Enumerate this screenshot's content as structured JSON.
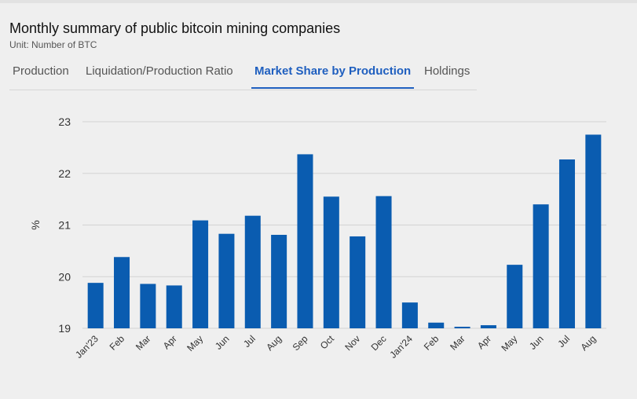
{
  "header": {
    "title": "Monthly summary of public bitcoin mining companies",
    "subtitle": "Unit: Number of BTC"
  },
  "tabs": [
    {
      "label": "Production",
      "active": false
    },
    {
      "label": "Liquidation/Production Ratio",
      "active": false
    },
    {
      "label": "Market Share by Production",
      "active": true
    },
    {
      "label": "Holdings",
      "active": false
    }
  ],
  "colors": {
    "bar": "#0a5cb0",
    "active_tab": "#1f5fbf",
    "grid": "#d3d3d3"
  },
  "chart_data": {
    "type": "bar",
    "ylabel": "%",
    "ylim": [
      19,
      23
    ],
    "yticks": [
      19,
      20,
      21,
      22,
      23
    ],
    "grid": true,
    "categories": [
      "Jan'23",
      "Feb",
      "Mar",
      "Apr",
      "May",
      "Jun",
      "Jul",
      "Aug",
      "Sep",
      "Oct",
      "Nov",
      "Dec",
      "Jan'24",
      "Feb",
      "Mar",
      "Apr",
      "May",
      "Jun",
      "Jul",
      "Aug"
    ],
    "values": [
      19.88,
      20.38,
      19.86,
      19.83,
      21.09,
      20.83,
      21.18,
      20.81,
      22.37,
      21.55,
      20.78,
      21.56,
      19.5,
      19.11,
      19.03,
      19.06,
      20.23,
      21.4,
      22.27,
      22.75
    ]
  }
}
